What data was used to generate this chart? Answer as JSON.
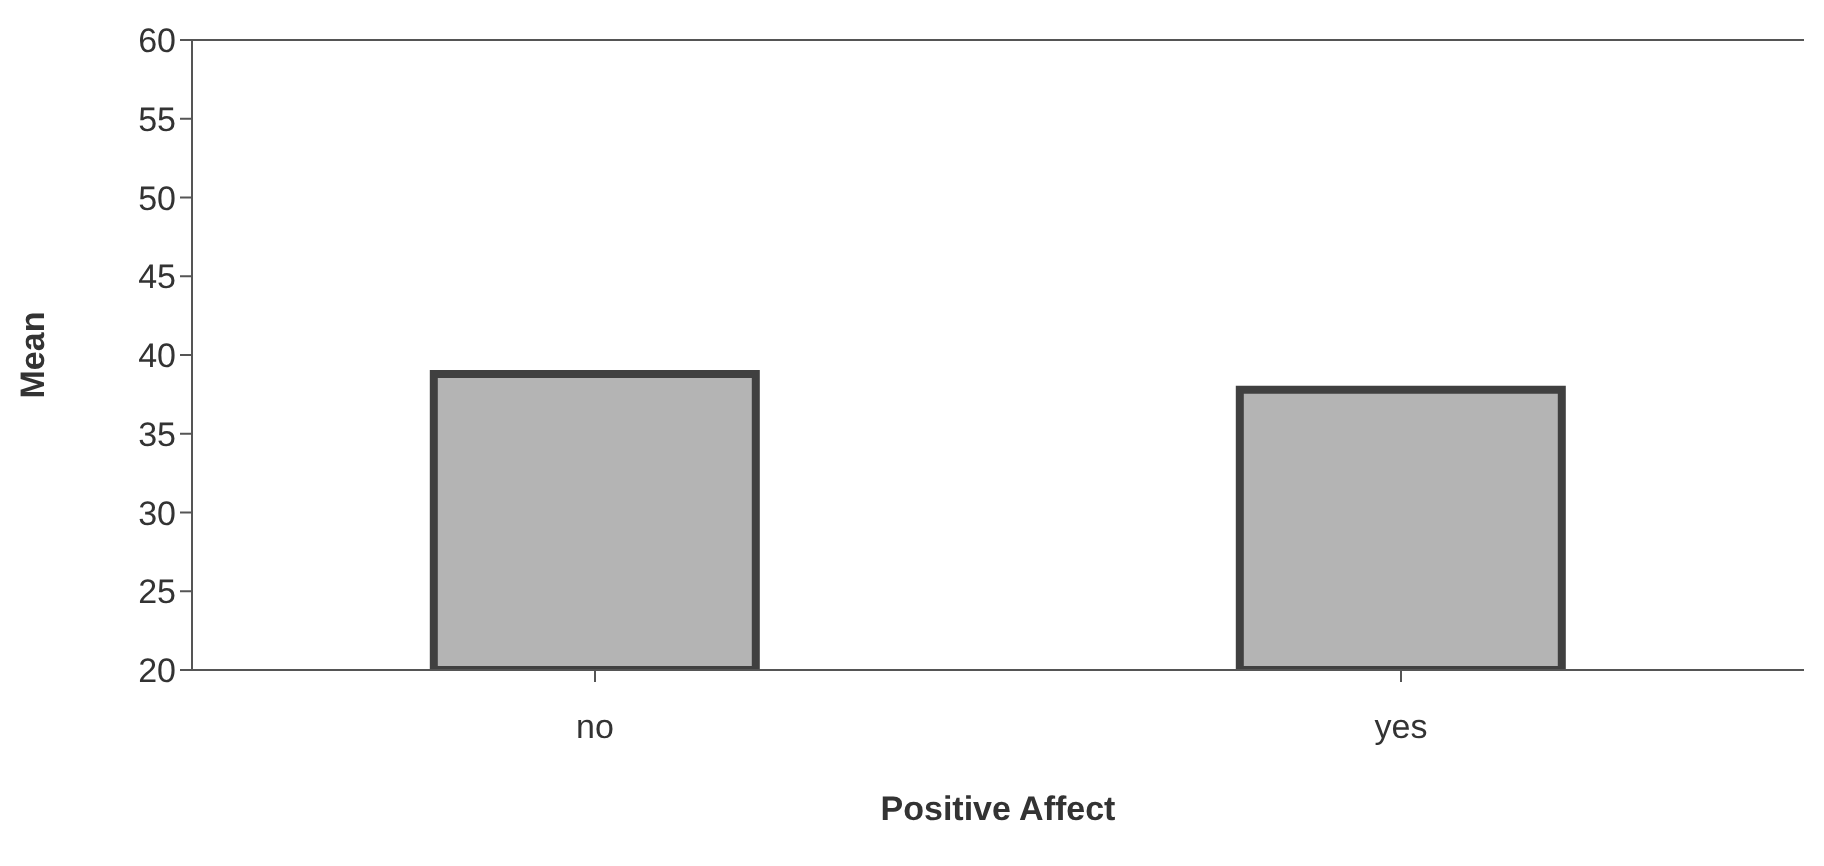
{
  "chart_data": {
    "type": "bar",
    "xlabel": "Positive Affect",
    "ylabel": "Mean",
    "categories": [
      "no",
      "yes"
    ],
    "series": [
      {
        "color": "#b4b4b4",
        "values": [
          38.8,
          37.8
        ]
      }
    ],
    "ylim": [
      20,
      60
    ],
    "yticks": [
      20,
      25,
      30,
      35,
      40,
      45,
      50,
      55,
      60
    ],
    "grid": false,
    "legend": false
  }
}
